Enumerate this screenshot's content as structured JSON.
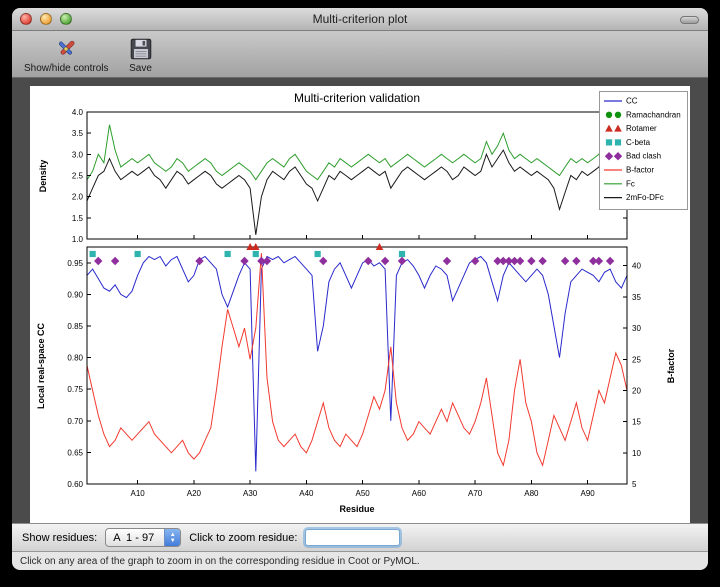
{
  "window": {
    "title": "Multi-criterion plot",
    "toolbar": {
      "show_hide_label": "Show/hide controls",
      "save_label": "Save"
    },
    "controls": {
      "show_residues_label": "Show residues:",
      "residue_range_value": "A  1 - 97",
      "zoom_label": "Click to zoom residue:",
      "zoom_input_value": ""
    },
    "status_bar": "Click on any area of the graph to zoom in on the corresponding residue in Coot or PyMOL."
  },
  "chart_data": {
    "type": "line",
    "title": "Multi-criterion validation",
    "xlabel": "Residue",
    "x_range": [
      1,
      97
    ],
    "xtick_values": [
      10,
      20,
      30,
      40,
      50,
      60,
      70,
      80,
      90
    ],
    "xtick_labels": [
      "A10",
      "A20",
      "A30",
      "A40",
      "A50",
      "A60",
      "A70",
      "A80",
      "A90"
    ],
    "legend": [
      {
        "label": "CC",
        "swatch": "line",
        "color": "#2929cc"
      },
      {
        "label": "Ramachandran",
        "swatch": "circle",
        "color": "#0f930f"
      },
      {
        "label": "Rotamer",
        "swatch": "triangle",
        "color": "#cc2b20"
      },
      {
        "label": "C-beta",
        "swatch": "square",
        "color": "#2fb3ae"
      },
      {
        "label": "Bad clash",
        "swatch": "diamond",
        "color": "#8f2f9e"
      },
      {
        "label": "B-factor",
        "swatch": "line",
        "color": "#f2392e"
      },
      {
        "label": "Fc",
        "swatch": "line",
        "color": "#2e9e2e"
      },
      {
        "label": "2mFo-DFc",
        "swatch": "line",
        "color": "#1a1a1a"
      }
    ],
    "top_plot": {
      "ylabel": "Density",
      "ylim": [
        1.0,
        4.0
      ],
      "ytick_values": [
        1.0,
        1.5,
        2.0,
        2.5,
        3.0,
        3.5,
        4.0
      ],
      "ytick_labels": [
        "1.0",
        "1.5",
        "2.0",
        "2.5",
        "3.0",
        "3.5",
        "4.0"
      ],
      "series": [
        {
          "name": "Fc",
          "color": "#2e9e2e",
          "values": [
            2.4,
            2.6,
            3.0,
            2.8,
            3.7,
            3.1,
            2.7,
            2.8,
            2.9,
            2.8,
            2.9,
            3.0,
            2.8,
            2.7,
            2.6,
            2.7,
            2.9,
            2.8,
            2.6,
            2.7,
            2.8,
            2.9,
            2.8,
            2.6,
            2.5,
            2.6,
            2.7,
            2.8,
            2.7,
            2.6,
            2.4,
            2.6,
            2.8,
            2.9,
            2.8,
            2.7,
            2.9,
            3.0,
            2.8,
            2.6,
            2.5,
            2.4,
            2.6,
            2.8,
            2.7,
            2.9,
            2.8,
            2.7,
            2.8,
            2.9,
            3.0,
            2.9,
            2.8,
            2.9,
            2.7,
            2.8,
            2.9,
            3.0,
            2.9,
            2.8,
            2.7,
            2.8,
            2.9,
            3.0,
            2.9,
            2.8,
            2.9,
            3.0,
            2.9,
            2.8,
            2.9,
            3.3,
            3.0,
            3.2,
            3.5,
            3.1,
            2.9,
            3.0,
            2.9,
            2.8,
            2.9,
            2.8,
            2.7,
            2.6,
            2.5,
            2.7,
            2.9,
            2.8,
            2.9,
            2.8,
            2.9,
            3.0,
            3.3,
            2.9,
            2.7,
            2.8,
            2.6
          ]
        },
        {
          "name": "2mFo-DFc",
          "color": "#1a1a1a",
          "values": [
            1.9,
            2.2,
            2.5,
            2.6,
            2.9,
            2.6,
            2.4,
            2.5,
            2.6,
            2.5,
            2.6,
            2.7,
            2.5,
            2.4,
            2.2,
            2.4,
            2.6,
            2.5,
            2.3,
            2.4,
            2.5,
            2.6,
            2.5,
            2.3,
            2.2,
            2.3,
            2.4,
            2.5,
            2.4,
            2.2,
            1.1,
            2.0,
            2.4,
            2.6,
            2.5,
            2.4,
            2.6,
            2.7,
            2.5,
            2.3,
            2.2,
            1.9,
            2.2,
            2.5,
            2.4,
            2.6,
            2.5,
            2.4,
            2.5,
            2.6,
            2.7,
            2.6,
            2.5,
            2.6,
            2.2,
            2.4,
            2.6,
            2.7,
            2.6,
            2.5,
            2.4,
            2.5,
            2.6,
            2.7,
            2.6,
            2.4,
            2.5,
            2.7,
            2.6,
            2.5,
            2.6,
            3.0,
            2.7,
            2.9,
            3.1,
            2.8,
            2.6,
            2.7,
            2.6,
            2.5,
            2.6,
            2.5,
            2.4,
            2.2,
            1.7,
            2.1,
            2.5,
            2.4,
            2.6,
            2.5,
            2.6,
            2.7,
            3.0,
            2.6,
            2.3,
            2.5,
            2.6
          ]
        }
      ]
    },
    "bottom_plot": {
      "ylabel_left": "Local real-space CC",
      "ylabel_right": "B-factor",
      "ylim_left": [
        0.6,
        0.975
      ],
      "ytick_values_left": [
        0.6,
        0.65,
        0.7,
        0.75,
        0.8,
        0.85,
        0.9,
        0.95
      ],
      "ytick_labels_left": [
        "0.60",
        "0.65",
        "0.70",
        "0.75",
        "0.80",
        "0.85",
        "0.90",
        "0.95"
      ],
      "ylim_right": [
        5,
        43
      ],
      "ytick_values_right": [
        5,
        10,
        15,
        20,
        25,
        30,
        35,
        40
      ],
      "ytick_labels_right": [
        "5",
        "10",
        "15",
        "20",
        "25",
        "30",
        "35",
        "40"
      ],
      "series": [
        {
          "name": "CC",
          "axis": "left",
          "color": "#2929cc",
          "values": [
            0.93,
            0.94,
            0.925,
            0.91,
            0.905,
            0.915,
            0.9,
            0.895,
            0.905,
            0.93,
            0.95,
            0.96,
            0.955,
            0.96,
            0.945,
            0.955,
            0.96,
            0.94,
            0.92,
            0.93,
            0.955,
            0.96,
            0.95,
            0.94,
            0.9,
            0.88,
            0.905,
            0.93,
            0.95,
            0.94,
            0.62,
            0.94,
            0.96,
            0.955,
            0.96,
            0.95,
            0.955,
            0.96,
            0.95,
            0.94,
            0.93,
            0.81,
            0.85,
            0.92,
            0.94,
            0.95,
            0.93,
            0.91,
            0.93,
            0.95,
            0.955,
            0.945,
            0.95,
            0.94,
            0.7,
            0.93,
            0.95,
            0.955,
            0.945,
            0.93,
            0.91,
            0.93,
            0.945,
            0.94,
            0.93,
            0.89,
            0.91,
            0.93,
            0.95,
            0.955,
            0.96,
            0.95,
            0.92,
            0.89,
            0.93,
            0.95,
            0.94,
            0.93,
            0.92,
            0.93,
            0.94,
            0.93,
            0.9,
            0.85,
            0.8,
            0.87,
            0.92,
            0.93,
            0.94,
            0.935,
            0.93,
            0.92,
            0.935,
            0.94,
            0.92,
            0.91,
            0.93
          ]
        },
        {
          "name": "B-factor",
          "axis": "right",
          "color": "#f2392e",
          "values": [
            24,
            20,
            16,
            13,
            11,
            12,
            14,
            13,
            12,
            13,
            14,
            15,
            13,
            12,
            11,
            10,
            11,
            12,
            10,
            9,
            10,
            12,
            14,
            20,
            27,
            33,
            30,
            27,
            30,
            25,
            30,
            42,
            22,
            15,
            12,
            11,
            12,
            13,
            11,
            10,
            12,
            15,
            18,
            14,
            12,
            11,
            13,
            12,
            11,
            13,
            16,
            19,
            17,
            20,
            27,
            18,
            14,
            12,
            13,
            15,
            14,
            13,
            15,
            17,
            15,
            18,
            16,
            14,
            13,
            15,
            18,
            22,
            16,
            10,
            8,
            12,
            20,
            25,
            18,
            15,
            10,
            8,
            12,
            16,
            14,
            12,
            15,
            18,
            14,
            12,
            16,
            20,
            18,
            22,
            26,
            24,
            20
          ]
        }
      ],
      "outlier_markers": [
        {
          "name": "Ramachandran",
          "shape": "circle",
          "color": "#0f930f",
          "residues": []
        },
        {
          "name": "Rotamer",
          "shape": "triangle",
          "color": "#cc2b20",
          "residues": [
            30,
            31,
            53
          ]
        },
        {
          "name": "C-beta",
          "shape": "square",
          "color": "#2fb3ae",
          "residues": [
            2,
            10,
            26,
            31,
            42,
            57
          ]
        },
        {
          "name": "Bad clash",
          "shape": "diamond",
          "color": "#8f2f9e",
          "residues": [
            3,
            6,
            21,
            29,
            32,
            33,
            43,
            51,
            54,
            57,
            65,
            70,
            74,
            75,
            76,
            77,
            78,
            80,
            82,
            86,
            88,
            91,
            92,
            94
          ]
        }
      ]
    }
  }
}
